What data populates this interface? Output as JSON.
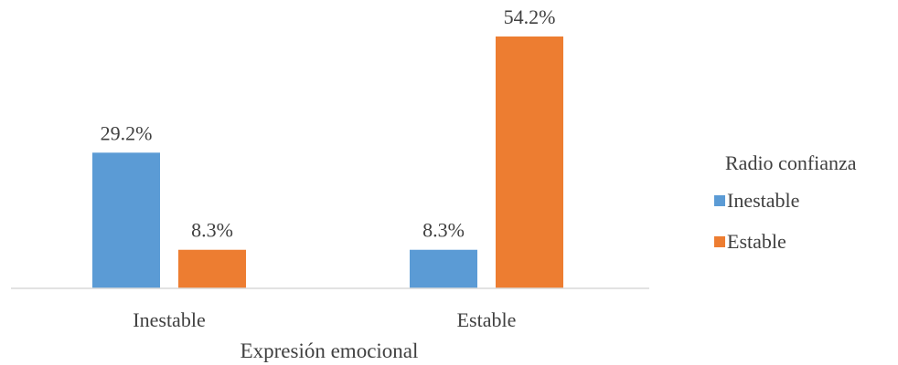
{
  "chart_data": {
    "type": "bar",
    "categories": [
      "Inestable",
      "Estable"
    ],
    "xlabel": "Expresión emocional",
    "ylabel": "",
    "ylim": [
      0,
      54.2
    ],
    "grid": false,
    "legend": {
      "title": "Radio confianza",
      "placement": "right"
    },
    "series": [
      {
        "name": "Inestable",
        "color": "#5B9BD5",
        "values": [
          29.2,
          8.3
        ],
        "labels": [
          "29.2%",
          "8.3%"
        ]
      },
      {
        "name": "Estable",
        "color": "#ED7D31",
        "values": [
          8.3,
          54.2
        ],
        "labels": [
          "8.3%",
          "54.2%"
        ]
      }
    ]
  }
}
